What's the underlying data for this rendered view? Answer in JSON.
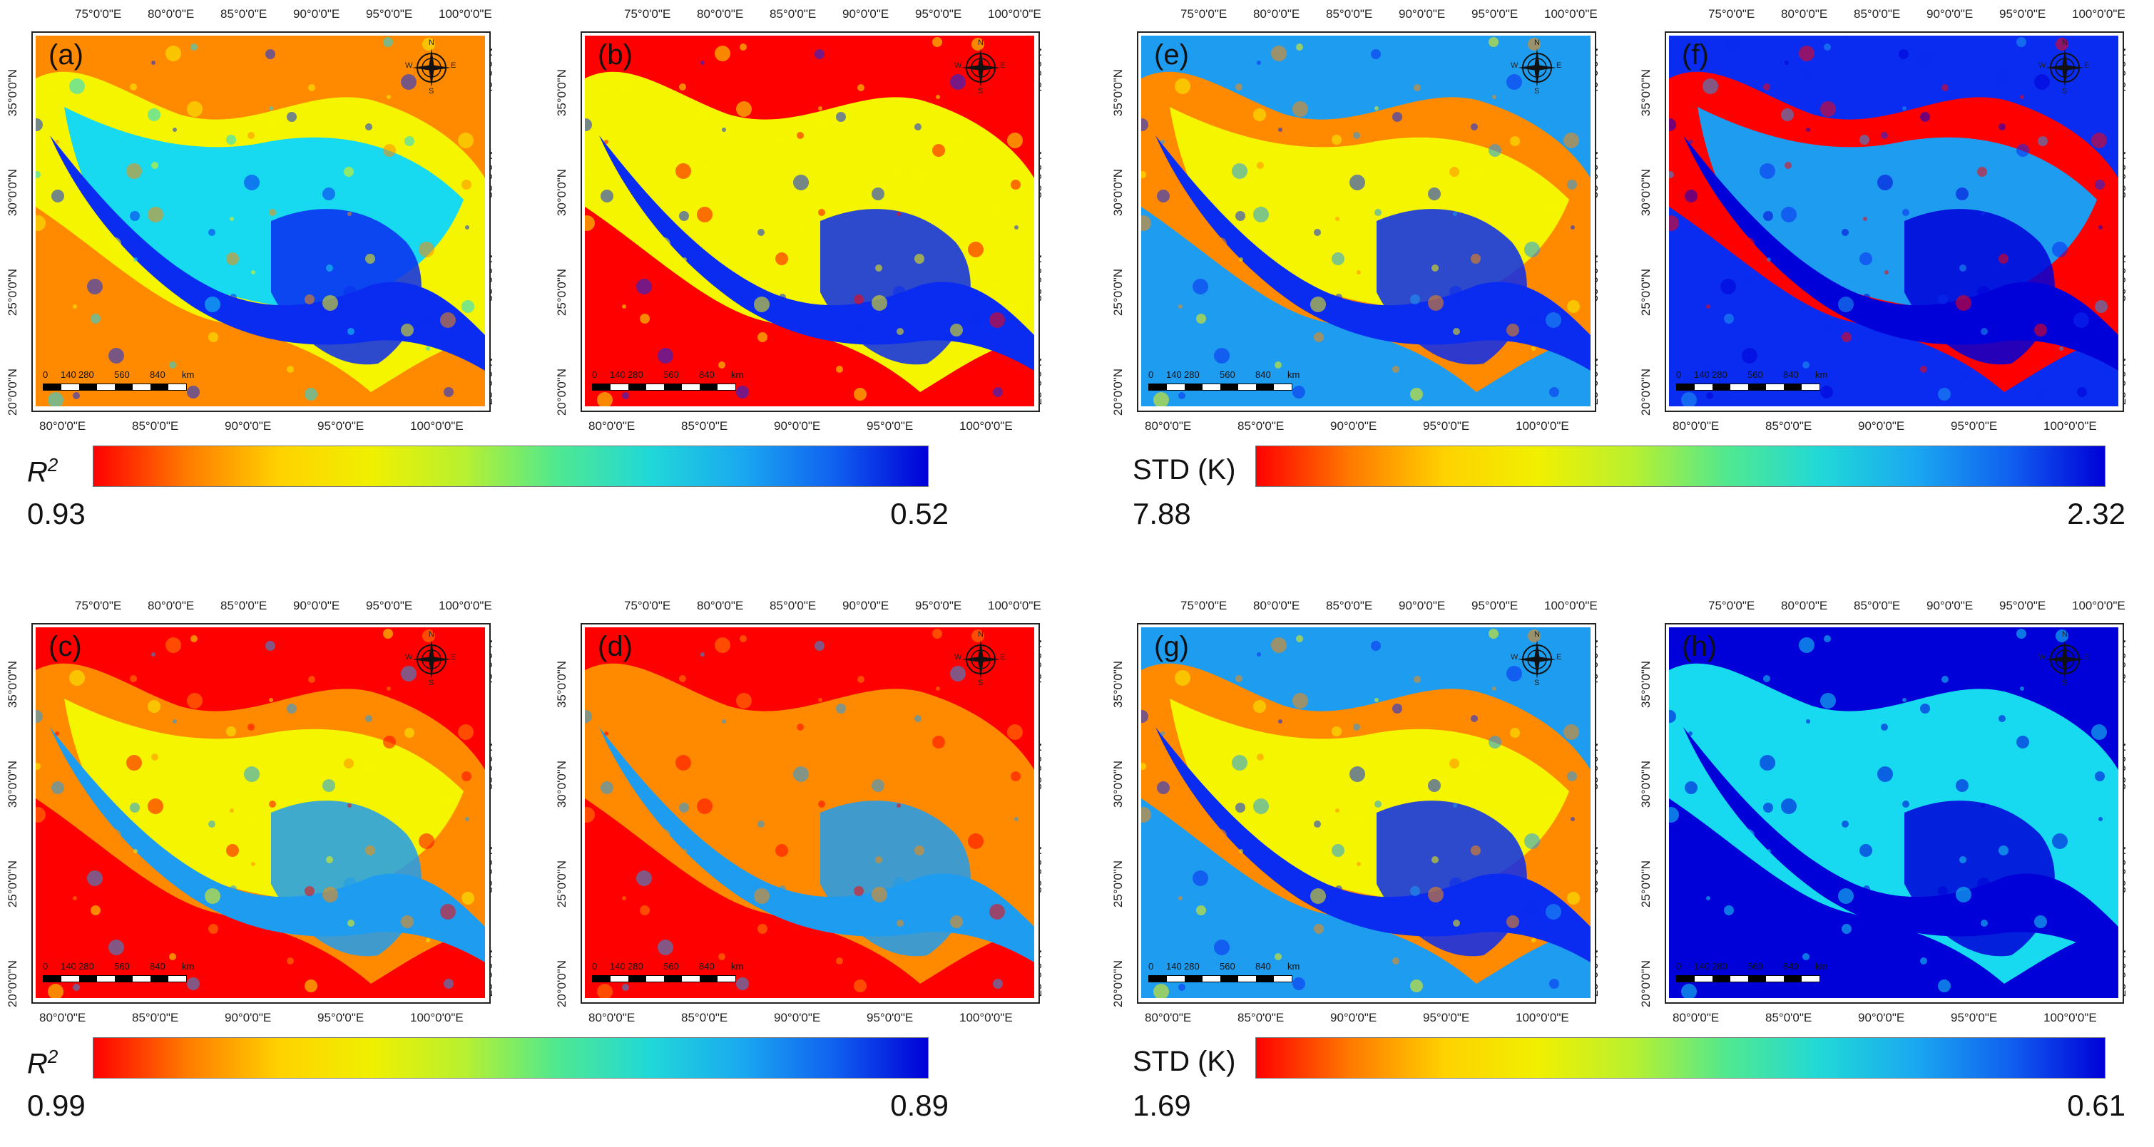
{
  "panels": [
    {
      "id": "a",
      "label": "(a)",
      "theme": "r2_low"
    },
    {
      "id": "b",
      "label": "(b)",
      "theme": "r2_high"
    },
    {
      "id": "e",
      "label": "(e)",
      "theme": "std_mid"
    },
    {
      "id": "f",
      "label": "(f)",
      "theme": "std_low"
    },
    {
      "id": "c",
      "label": "(c)",
      "theme": "r2_mid"
    },
    {
      "id": "d",
      "label": "(d)",
      "theme": "r2_vhigh"
    },
    {
      "id": "g",
      "label": "(g)",
      "theme": "std_mid2"
    },
    {
      "id": "h",
      "label": "(h)",
      "theme": "std_vlow"
    }
  ],
  "top_ticks": [
    "75°0'0\"E",
    "80°0'0\"E",
    "85°0'0\"E",
    "90°0'0\"E",
    "95°0'0\"E",
    "100°0'0\"E"
  ],
  "bottom_ticks": [
    "80°0'0\"E",
    "85°0'0\"E",
    "90°0'0\"E",
    "95°0'0\"E",
    "100°0'0\"E"
  ],
  "left_ticks": [
    "35°0'0\"N",
    "30°0'0\"N",
    "25°0'0\"N",
    "20°0'0\"N"
  ],
  "right_ticks": [
    "40°0'0\"N",
    "35°0'0\"N",
    "30°0'0\"N",
    "25°0'0\"N"
  ],
  "scale_labels": [
    "0",
    "140",
    "280",
    "560",
    "840",
    "km"
  ],
  "compass_letters": {
    "n": "N",
    "s": "S",
    "e": "E",
    "w": "W"
  },
  "colorbars": {
    "r2_top": {
      "label": "R",
      "sup": "2",
      "min": "0.93",
      "max": "0.52"
    },
    "std_top": {
      "label": "STD (K)",
      "min": "7.88",
      "max": "2.32"
    },
    "r2_bottom": {
      "label": "R",
      "sup": "2",
      "min": "0.99",
      "max": "0.89"
    },
    "std_bottom": {
      "label": "STD (K)",
      "min": "1.69",
      "max": "0.61"
    }
  },
  "colors": {
    "red": "#ff0000",
    "orange": "#ff8a00",
    "yellow": "#f5f500",
    "green": "#3cf078",
    "cyan": "#17d9f0",
    "lightblue": "#1e9cf0",
    "blue": "#0a2cf0",
    "darkblue": "#0000d8"
  }
}
